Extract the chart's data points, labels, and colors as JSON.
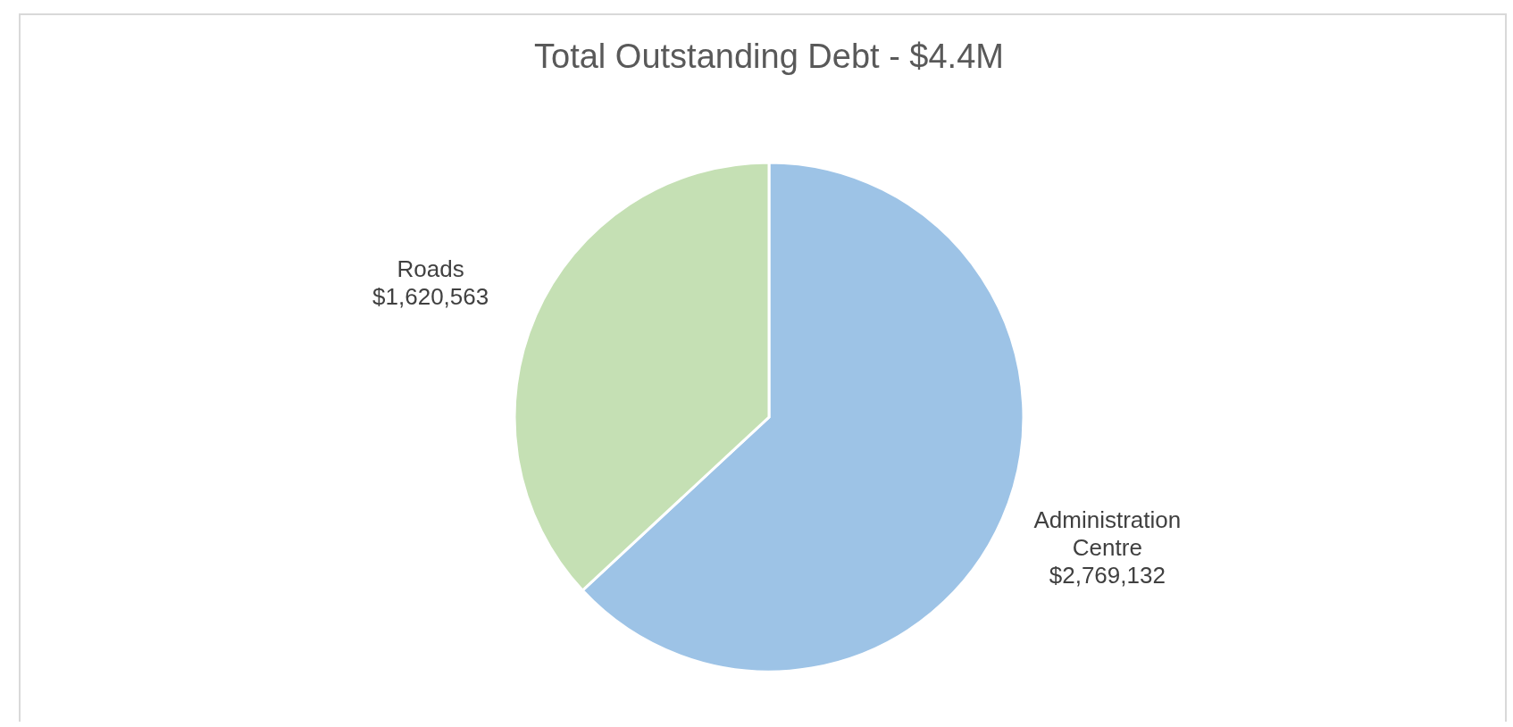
{
  "chart_data": {
    "type": "pie",
    "title": "Total Outstanding Debt - $4.4M",
    "categories": [
      "Administration Centre",
      "Roads"
    ],
    "values": [
      2769132,
      1620563
    ],
    "colors": [
      "#9dc3e6",
      "#c5e0b4"
    ],
    "value_labels": [
      "$2,769,132",
      "$1,620,563"
    ]
  }
}
